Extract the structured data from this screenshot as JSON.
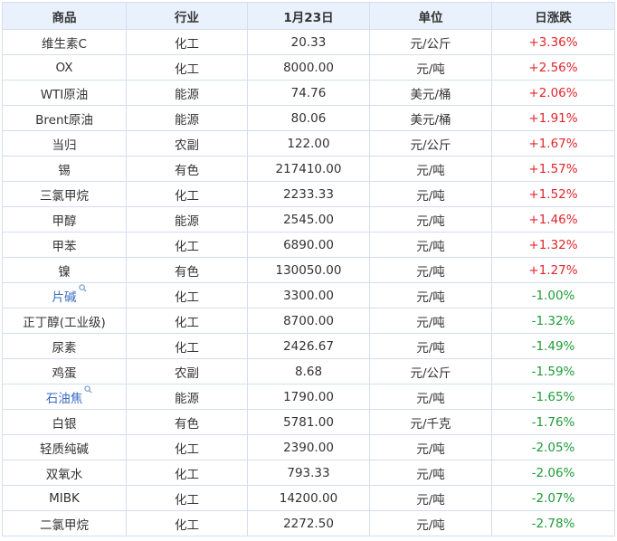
{
  "table": {
    "header": [
      "商品",
      "行业",
      "1月23日",
      "单位",
      "日涨跌"
    ],
    "rows": [
      [
        "维生素C",
        "化工",
        "20.33",
        "元/公斤",
        "+3.36%"
      ],
      [
        "OX",
        "化工",
        "8000.00",
        "元/吨",
        "+2.56%"
      ],
      [
        "WTI原油",
        "能源",
        "74.76",
        "美元/桶",
        "+2.06%"
      ],
      [
        "Brent原油",
        "能源",
        "80.06",
        "美元/桶",
        "+1.91%"
      ],
      [
        "当归",
        "农副",
        "122.00",
        "元/公斤",
        "+1.67%"
      ],
      [
        "锡",
        "有色",
        "217410.00",
        "元/吨",
        "+1.57%"
      ],
      [
        "三氯甲烷",
        "化工",
        "2233.33",
        "元/吨",
        "+1.52%"
      ],
      [
        "甲醇",
        "能源",
        "2545.00",
        "元/吨",
        "+1.46%"
      ],
      [
        "甲苯",
        "化工",
        "6890.00",
        "元/吨",
        "+1.32%"
      ],
      [
        "镍",
        "有色",
        "130050.00",
        "元/吨",
        "+1.27%"
      ],
      [
        "片碱",
        "化工",
        "3300.00",
        "元/吨",
        "-1.00%"
      ],
      [
        "正丁醇(工业级)",
        "化工",
        "8700.00",
        "元/吨",
        "-1.32%"
      ],
      [
        "尿素",
        "化工",
        "2426.67",
        "元/吨",
        "-1.49%"
      ],
      [
        "鸡蛋",
        "农副",
        "8.68",
        "元/公斤",
        "-1.59%"
      ],
      [
        "石油焦",
        "能源",
        "1790.00",
        "元/吨",
        "-1.65%"
      ],
      [
        "白银",
        "有色",
        "5781.00",
        "元/千克",
        "-1.76%"
      ],
      [
        "轻质纯碱",
        "化工",
        "2390.00",
        "元/吨",
        "-2.05%"
      ],
      [
        "双氧水",
        "化工",
        "793.33",
        "元/吨",
        "-2.06%"
      ],
      [
        "MIBK",
        "化工",
        "14200.00",
        "元/吨",
        "-2.07%"
      ],
      [
        "二氯甲烷",
        "化工",
        "2272.50",
        "元/吨",
        "-2.78%"
      ]
    ],
    "linked_rows": [
      10,
      14
    ]
  }
}
